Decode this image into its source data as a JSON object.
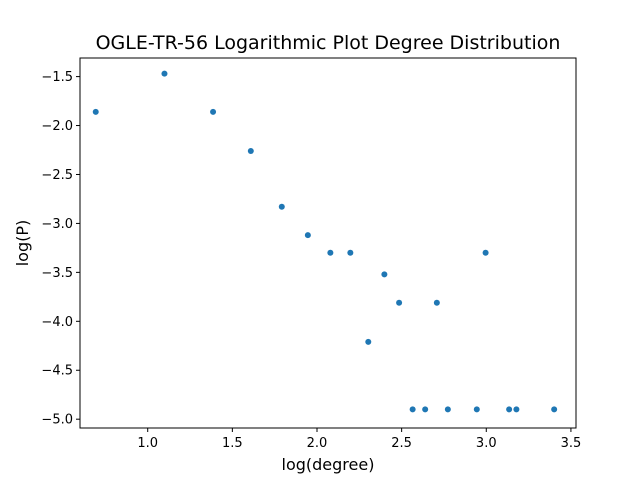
{
  "chart_data": {
    "type": "scatter",
    "title": "OGLE-TR-56 Logarithmic Plot Degree Distribution",
    "xlabel": "log(degree)",
    "ylabel": "log(P)",
    "xlim": [
      0.6,
      3.53
    ],
    "ylim": [
      -5.09,
      -1.31
    ],
    "xticks": [
      1.0,
      1.5,
      2.0,
      2.5,
      3.0,
      3.5
    ],
    "xtick_labels": [
      "1.0",
      "1.5",
      "2.0",
      "2.5",
      "3.0",
      "3.5"
    ],
    "yticks": [
      -1.5,
      -2.0,
      -2.5,
      -3.0,
      -3.5,
      -4.0,
      -4.5,
      -5.0
    ],
    "ytick_labels": [
      "−1.5",
      "−2.0",
      "−2.5",
      "−3.0",
      "−3.5",
      "−4.0",
      "−4.5",
      "−5.0"
    ],
    "grid": false,
    "marker_color": "#1f77b4",
    "points": [
      {
        "x": 0.693,
        "y": -1.86
      },
      {
        "x": 1.099,
        "y": -1.47
      },
      {
        "x": 1.386,
        "y": -1.86
      },
      {
        "x": 1.609,
        "y": -2.26
      },
      {
        "x": 1.792,
        "y": -2.83
      },
      {
        "x": 1.946,
        "y": -3.12
      },
      {
        "x": 2.079,
        "y": -3.3
      },
      {
        "x": 2.197,
        "y": -3.3
      },
      {
        "x": 2.303,
        "y": -4.21
      },
      {
        "x": 2.398,
        "y": -3.52
      },
      {
        "x": 2.485,
        "y": -3.81
      },
      {
        "x": 2.565,
        "y": -4.9
      },
      {
        "x": 2.639,
        "y": -4.9
      },
      {
        "x": 2.708,
        "y": -3.81
      },
      {
        "x": 2.773,
        "y": -4.9
      },
      {
        "x": 2.944,
        "y": -4.9
      },
      {
        "x": 2.996,
        "y": -3.3
      },
      {
        "x": 3.135,
        "y": -4.9
      },
      {
        "x": 3.178,
        "y": -4.9
      },
      {
        "x": 3.401,
        "y": -4.9
      }
    ]
  }
}
